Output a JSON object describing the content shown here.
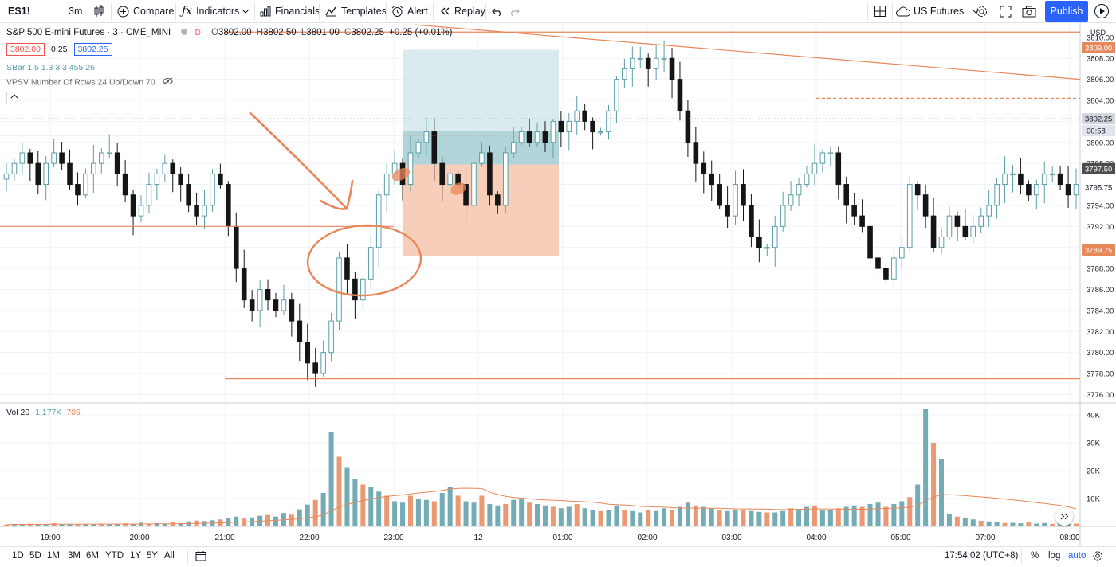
{
  "toolbar": {
    "symbol": "ES1!",
    "interval": "3m",
    "compare": "Compare",
    "indicators": "Indicators",
    "financials": "Financials",
    "templates": "Templates",
    "alert": "Alert",
    "replay": "Replay",
    "exchange": "US Futures",
    "publish": "Publish"
  },
  "legend": {
    "title": "S&P 500 E-mini Futures · 3 · CME_MINI",
    "open_label": "O",
    "open": "3802.00",
    "high_label": "H",
    "high": "3802.50",
    "low_label": "L",
    "low": "3801.00",
    "close_label": "C",
    "close": "3802.25",
    "change": "+0.25 (+0.01%)",
    "bid": "3802.00",
    "spread": "0.25",
    "ask": "3802.25",
    "indicator1": "SBar 1.5 1.3 3 3 455 26",
    "indicator2": "VPSV Number Of Rows 24 Up/Down 70",
    "volume_label": "Vol 20",
    "volume_value": "1.177K",
    "volume_ma": "705"
  },
  "price_axis": {
    "currency": "USD",
    "badge_top": "3809.00",
    "badge_last": "3802.25",
    "badge_countdown": "00:58",
    "badge_mid": "3797.50",
    "badge_cur": "3795.75",
    "badge_low": "3789.75"
  },
  "time_axis": [
    "19:00",
    "20:00",
    "21:00",
    "22:00",
    "23:00",
    "12",
    "01:00",
    "02:00",
    "03:00",
    "04:00",
    "05:00",
    "07:00",
    "08:00"
  ],
  "bottom": {
    "ranges": [
      "1D",
      "5D",
      "1M",
      "3M",
      "6M",
      "YTD",
      "1Y",
      "5Y",
      "All"
    ],
    "clock": "17:54:02 (UTC+8)",
    "percent": "%",
    "log": "log",
    "auto": "auto"
  },
  "colors": {
    "up": "#5b9ea8",
    "down": "#151515",
    "annotation": "#e8875a",
    "accent": "#2962ff",
    "target_zone": "#a8cfd4",
    "stop_zone": "#f6c9b2"
  },
  "chart_data": {
    "type": "candlestick",
    "y_ticks": [
      3776,
      3778,
      3780,
      3782,
      3784,
      3786,
      3788,
      3790,
      3792,
      3794,
      3796,
      3798,
      3800,
      3802,
      3804,
      3806,
      3808,
      3810
    ],
    "ylim": [
      3775.2,
      3811.2
    ],
    "volume_ticks": [
      "10K",
      "20K",
      "30K",
      "40K"
    ],
    "volume_ylim": [
      0,
      42000
    ],
    "x_labels": [
      "19:00",
      "20:00",
      "21:00",
      "22:00",
      "23:00",
      "12",
      "01:00",
      "02:00",
      "03:00",
      "04:00",
      "05:00",
      "07:00",
      "08:00"
    ],
    "close_path": [
      3797,
      3798,
      3799,
      3798,
      3796,
      3798,
      3799,
      3798,
      3796,
      3795,
      3797,
      3798,
      3799,
      3799,
      3797,
      3795,
      3793,
      3794,
      3796,
      3797,
      3798,
      3797,
      3796,
      3794,
      3793,
      3794,
      3797,
      3796,
      3792,
      3788,
      3785,
      3784,
      3786,
      3785,
      3784,
      3785,
      3783,
      3781,
      3779,
      3778,
      3780,
      3783,
      3789,
      3787,
      3785,
      3787,
      3790,
      3795,
      3797,
      3798,
      3796,
      3799,
      3800,
      3801,
      3798,
      3796,
      3797,
      3796,
      3794,
      3798,
      3799,
      3795,
      3794,
      3799,
      3800,
      3801,
      3800,
      3801,
      3800,
      3802,
      3801,
      3802,
      3803,
      3802,
      3801,
      3801,
      3803,
      3806,
      3807,
      3808,
      3808,
      3807,
      3808,
      3808,
      3806,
      3803,
      3800,
      3798,
      3797,
      3796,
      3794,
      3793,
      3796,
      3794,
      3791,
      3790,
      3790,
      3792,
      3794,
      3795,
      3796,
      3797,
      3798,
      3799,
      3799,
      3796,
      3794,
      3793,
      3792,
      3789,
      3788,
      3787,
      3789,
      3790,
      3796,
      3795,
      3793,
      3790,
      3791,
      3793,
      3792,
      3791,
      3792,
      3793,
      3794,
      3796,
      3797,
      3797,
      3796,
      3795,
      3796,
      3797,
      3797,
      3796,
      3795,
      3796
    ],
    "volume_path": [
      600,
      800,
      700,
      900,
      700,
      800,
      1100,
      800,
      900,
      700,
      900,
      800,
      1000,
      700,
      900,
      1100,
      900,
      1300,
      1000,
      1200,
      900,
      1400,
      1200,
      1800,
      2100,
      1900,
      2200,
      2500,
      2900,
      3500,
      2800,
      3200,
      3800,
      4100,
      3500,
      4800,
      4200,
      6100,
      7800,
      9500,
      12000,
      34000,
      25000,
      21000,
      17000,
      15000,
      14000,
      12500,
      11000,
      9000,
      8500,
      11000,
      10000,
      9500,
      9000,
      12000,
      14000,
      11000,
      9000,
      8500,
      11000,
      8000,
      7500,
      8000,
      9500,
      10000,
      8500,
      8000,
      7500,
      7000,
      6500,
      7000,
      8000,
      6500,
      6000,
      5500,
      6000,
      7500,
      6000,
      5500,
      5000,
      6000,
      5500,
      6500,
      6000,
      7000,
      8500,
      7500,
      7000,
      6500,
      6000,
      5500,
      6000,
      5800,
      5500,
      5200,
      5000,
      5000,
      5500,
      6500,
      6000,
      7000,
      7500,
      6000,
      5800,
      6500,
      7000,
      7500,
      7000,
      8000,
      8500,
      7000,
      8000,
      9000,
      10500,
      15000,
      42000,
      30000,
      24000,
      4500,
      3500,
      3000,
      2500,
      2000,
      1800,
      1500,
      1200,
      1300,
      1100,
      1400,
      1000,
      1200,
      900,
      1100,
      800,
      1000
    ]
  }
}
